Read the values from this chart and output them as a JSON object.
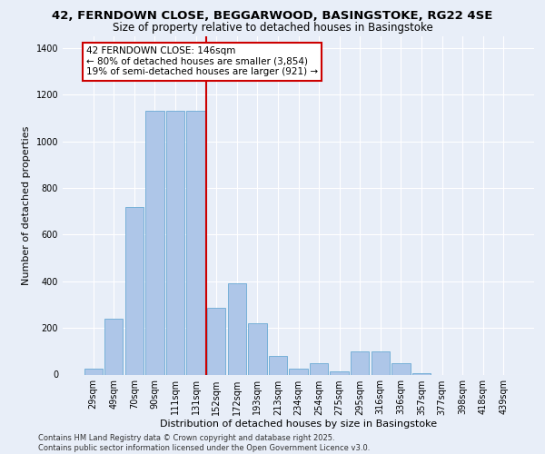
{
  "title1": "42, FERNDOWN CLOSE, BEGGARWOOD, BASINGSTOKE, RG22 4SE",
  "title2": "Size of property relative to detached houses in Basingstoke",
  "xlabel": "Distribution of detached houses by size in Basingstoke",
  "ylabel": "Number of detached properties",
  "categories": [
    "29sqm",
    "49sqm",
    "70sqm",
    "90sqm",
    "111sqm",
    "131sqm",
    "152sqm",
    "172sqm",
    "193sqm",
    "213sqm",
    "234sqm",
    "254sqm",
    "275sqm",
    "295sqm",
    "316sqm",
    "336sqm",
    "357sqm",
    "377sqm",
    "398sqm",
    "418sqm",
    "439sqm"
  ],
  "values": [
    25,
    240,
    720,
    1130,
    1130,
    1130,
    285,
    390,
    220,
    80,
    25,
    50,
    15,
    100,
    100,
    50,
    5,
    0,
    0,
    0,
    0
  ],
  "bar_color": "#aec6e8",
  "bar_edge_color": "#6aaad4",
  "vline_x": 5.5,
  "vline_color": "#cc0000",
  "annotation_text": "42 FERNDOWN CLOSE: 146sqm\n← 80% of detached houses are smaller (3,854)\n19% of semi-detached houses are larger (921) →",
  "annotation_box_color": "#ffffff",
  "annotation_box_edge_color": "#cc0000",
  "ylim": [
    0,
    1450
  ],
  "yticks": [
    0,
    200,
    400,
    600,
    800,
    1000,
    1200,
    1400
  ],
  "background_color": "#e8eef8",
  "grid_color": "#ffffff",
  "footer_text": "Contains HM Land Registry data © Crown copyright and database right 2025.\nContains public sector information licensed under the Open Government Licence v3.0.",
  "title1_fontsize": 9.5,
  "title2_fontsize": 8.5,
  "xlabel_fontsize": 8,
  "ylabel_fontsize": 8,
  "tick_fontsize": 7,
  "annotation_fontsize": 7.5,
  "footer_fontsize": 6
}
